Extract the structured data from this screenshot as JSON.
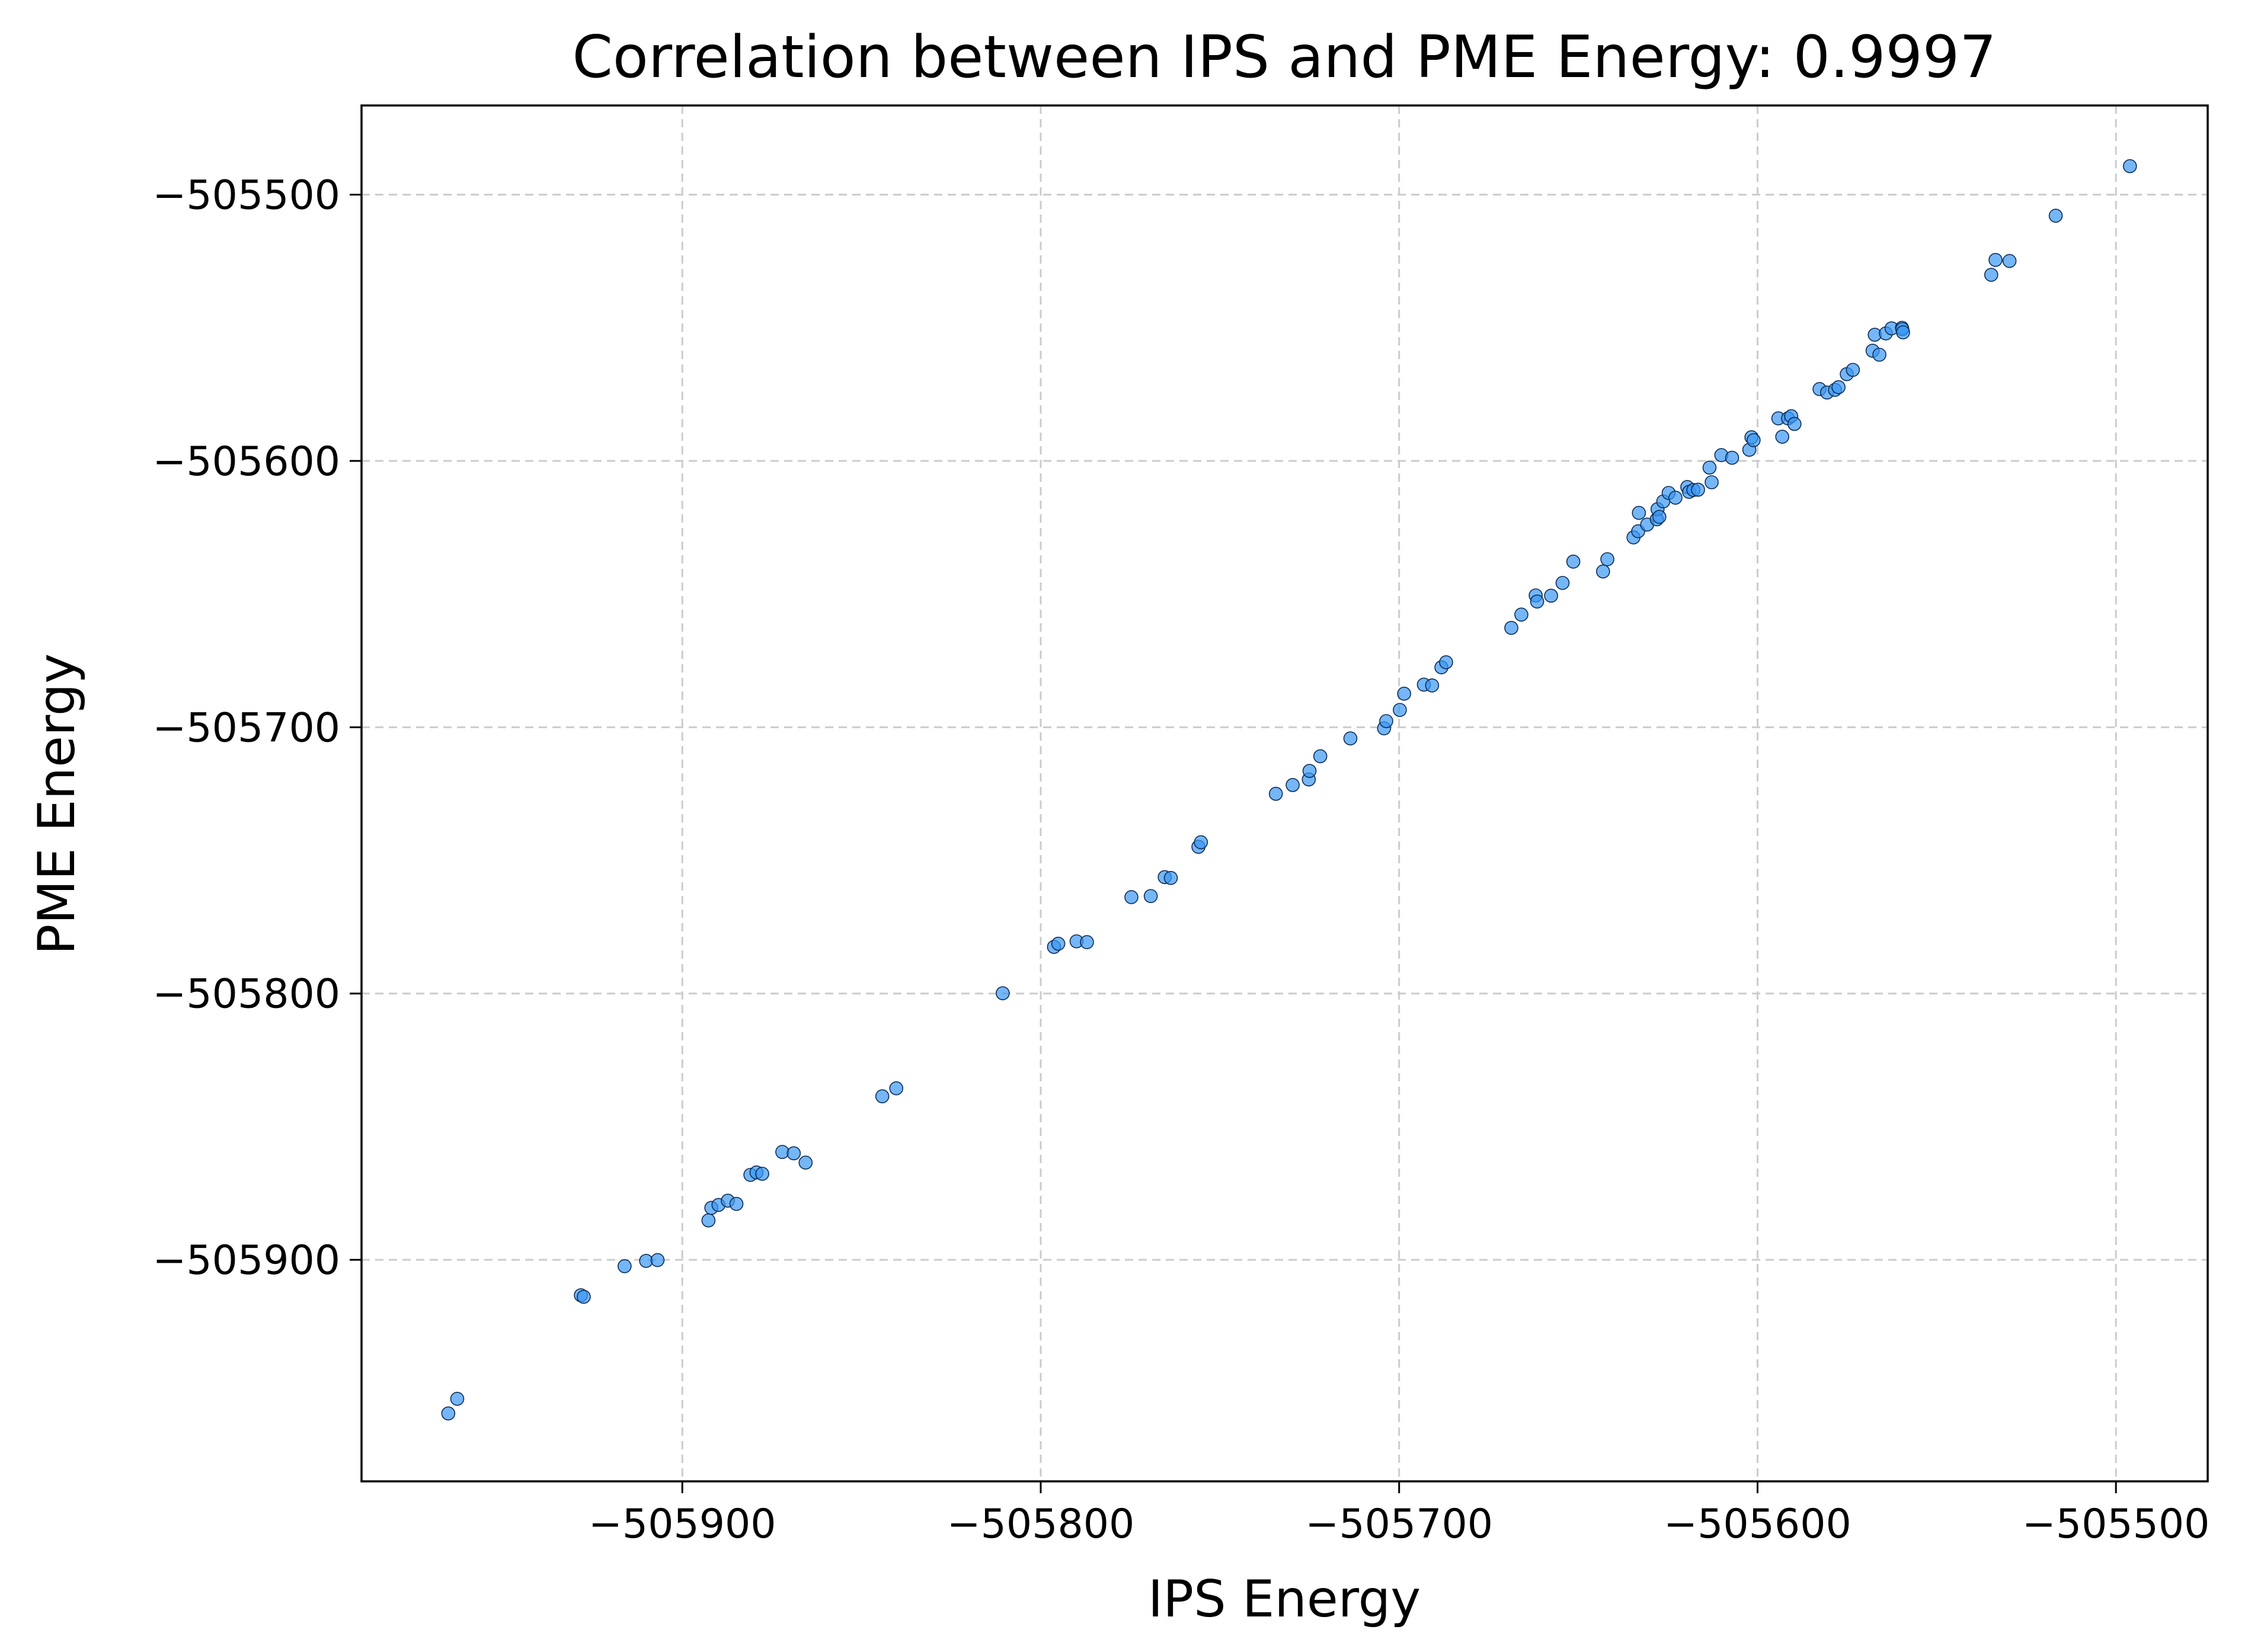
{
  "chart_data": {
    "type": "scatter",
    "title": "Correlation between IPS and PME Energy: 0.9997",
    "xlabel": "IPS Energy",
    "ylabel": "PME Energy",
    "xlim": [
      -505989.5,
      -505474.4
    ],
    "ylim": [
      -505983.2,
      -505466.5
    ],
    "xticks": [
      -505900,
      -505800,
      -505700,
      -505600,
      -505500
    ],
    "yticks": [
      -505500,
      -505600,
      -505700,
      -505800,
      -505900
    ],
    "xtick_labels": [
      "−505900",
      "−505800",
      "−505700",
      "−505600",
      "−505500"
    ],
    "ytick_labels": [
      "−505500",
      "−505600",
      "−505700",
      "−505800",
      "−505900"
    ],
    "grid": true,
    "point_color": "#3b97f3",
    "edge_color": "#0b2c55",
    "series": [
      {
        "x": [
          -505965.3,
          -505962.8,
          -505928.3,
          -505927.5,
          -505916.1,
          -505910.1,
          -505906.9,
          -505892.7,
          -505891.9,
          -505889.9,
          -505887.3,
          -505884.9,
          -505881.0,
          -505879.3,
          -505877.7,
          -505872.1,
          -505868.9,
          -505865.6,
          -505844.2,
          -505840.3,
          -505810.6,
          -505796.3,
          -505795.1,
          -505790.0,
          -505787.1,
          -505774.7,
          -505769.3,
          -505765.4,
          -505763.7,
          -505756.0,
          -505755.3,
          -505734.4,
          -505729.7,
          -505725.2,
          -505725.0,
          -505722.0,
          -505713.6,
          -505704.2,
          -505703.6,
          -505699.8,
          -505698.6,
          -505693.1,
          -505690.8,
          -505688.2,
          -505686.9,
          -505668.7,
          -505665.9,
          -505661.9,
          -505661.5,
          -505657.6,
          -505654.4,
          -505651.4,
          -505643.1,
          -505641.9,
          -505634.6,
          -505633.3,
          -505633.1,
          -505630.8,
          -505628.1,
          -505627.9,
          -505627.4,
          -505626.3,
          -505624.8,
          -505622.9,
          -505619.6,
          -505619.1,
          -505617.9,
          -505616.6,
          -505613.4,
          -505612.8,
          -505610.1,
          -505607.1,
          -505602.3,
          -505601.7,
          -505601.1,
          -505594.2,
          -505593.1,
          -505591.5,
          -505590.6,
          -505589.7,
          -505582.7,
          -505580.6,
          -505578.4,
          -505577.4,
          -505575.1,
          -505573.4,
          -505567.9,
          -505567.3,
          -505566.0,
          -505564.2,
          -505562.6,
          -505559.7,
          -505559.6,
          -505559.4,
          -505534.8,
          -505533.6,
          -505529.7,
          -505516.8,
          -505496.1
        ],
        "y": [
          -505957.7,
          -505952.2,
          -505913.3,
          -505913.9,
          -505902.4,
          -505900.4,
          -505900.1,
          -505885.2,
          -505880.5,
          -505879.4,
          -505877.8,
          -505879.0,
          -505868.1,
          -505867.2,
          -505867.7,
          -505859.5,
          -505860.0,
          -505863.5,
          -505838.6,
          -505835.6,
          -505799.9,
          -505782.5,
          -505781.3,
          -505780.4,
          -505780.7,
          -505763.8,
          -505763.4,
          -505756.3,
          -505756.6,
          -505744.9,
          -505743.2,
          -505725.0,
          -505721.7,
          -505719.6,
          -505716.4,
          -505710.9,
          -505704.2,
          -505700.4,
          -505697.7,
          -505693.5,
          -505687.4,
          -505684.0,
          -505684.3,
          -505677.5,
          -505675.6,
          -505662.7,
          -505657.7,
          -505650.5,
          -505652.8,
          -505650.6,
          -505645.8,
          -505637.8,
          -505641.5,
          -505636.9,
          -505628.7,
          -505626.4,
          -505619.5,
          -505623.9,
          -505621.9,
          -505618.1,
          -505621.0,
          -505615.2,
          -505612.0,
          -505613.8,
          -505609.8,
          -505611.6,
          -505610.9,
          -505610.8,
          -505602.5,
          -505608.0,
          -505597.8,
          -505598.8,
          -505595.8,
          -505591.1,
          -505592.2,
          -505584.0,
          -505590.9,
          -505584.0,
          -505583.2,
          -505586.1,
          -505573.0,
          -505574.3,
          -505573.3,
          -505572.3,
          -505567.4,
          -505565.8,
          -505558.6,
          -505552.6,
          -505560.1,
          -505552.1,
          -505550.2,
          -505550.0,
          -505550.5,
          -505551.7,
          -505530.1,
          -505524.5,
          -505524.9,
          -505507.9,
          -505489.3
        ]
      }
    ]
  }
}
